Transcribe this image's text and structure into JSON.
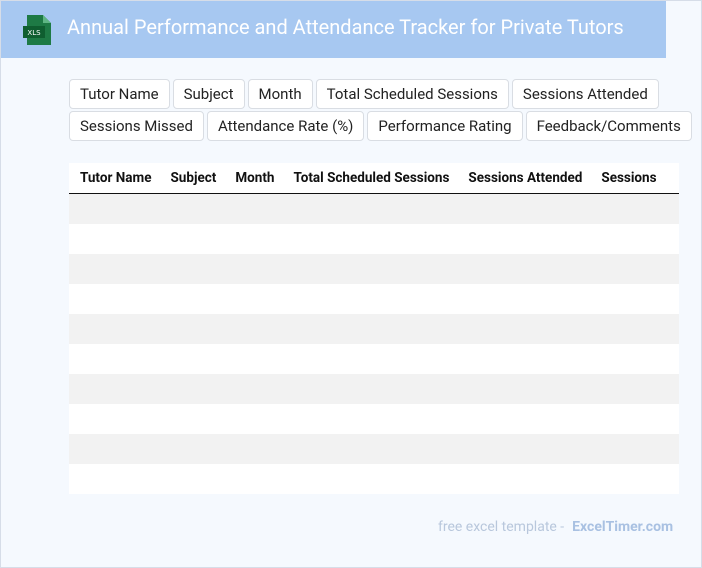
{
  "header": {
    "icon": "XLS",
    "title": "Annual Performance and Attendance Tracker for Private Tutors"
  },
  "fields": [
    "Tutor Name",
    "Subject",
    "Month",
    "Total Scheduled Sessions",
    "Sessions Attended",
    "Sessions Missed",
    "Attendance Rate (%)",
    "Performance Rating",
    "Feedback/Comments"
  ],
  "table": {
    "columns": [
      "Tutor Name",
      "Subject",
      "Month",
      "Total Scheduled Sessions",
      "Sessions Attended",
      "Sessions"
    ]
  },
  "footer": {
    "text": "free excel template -",
    "link": "ExcelTimer.com"
  }
}
